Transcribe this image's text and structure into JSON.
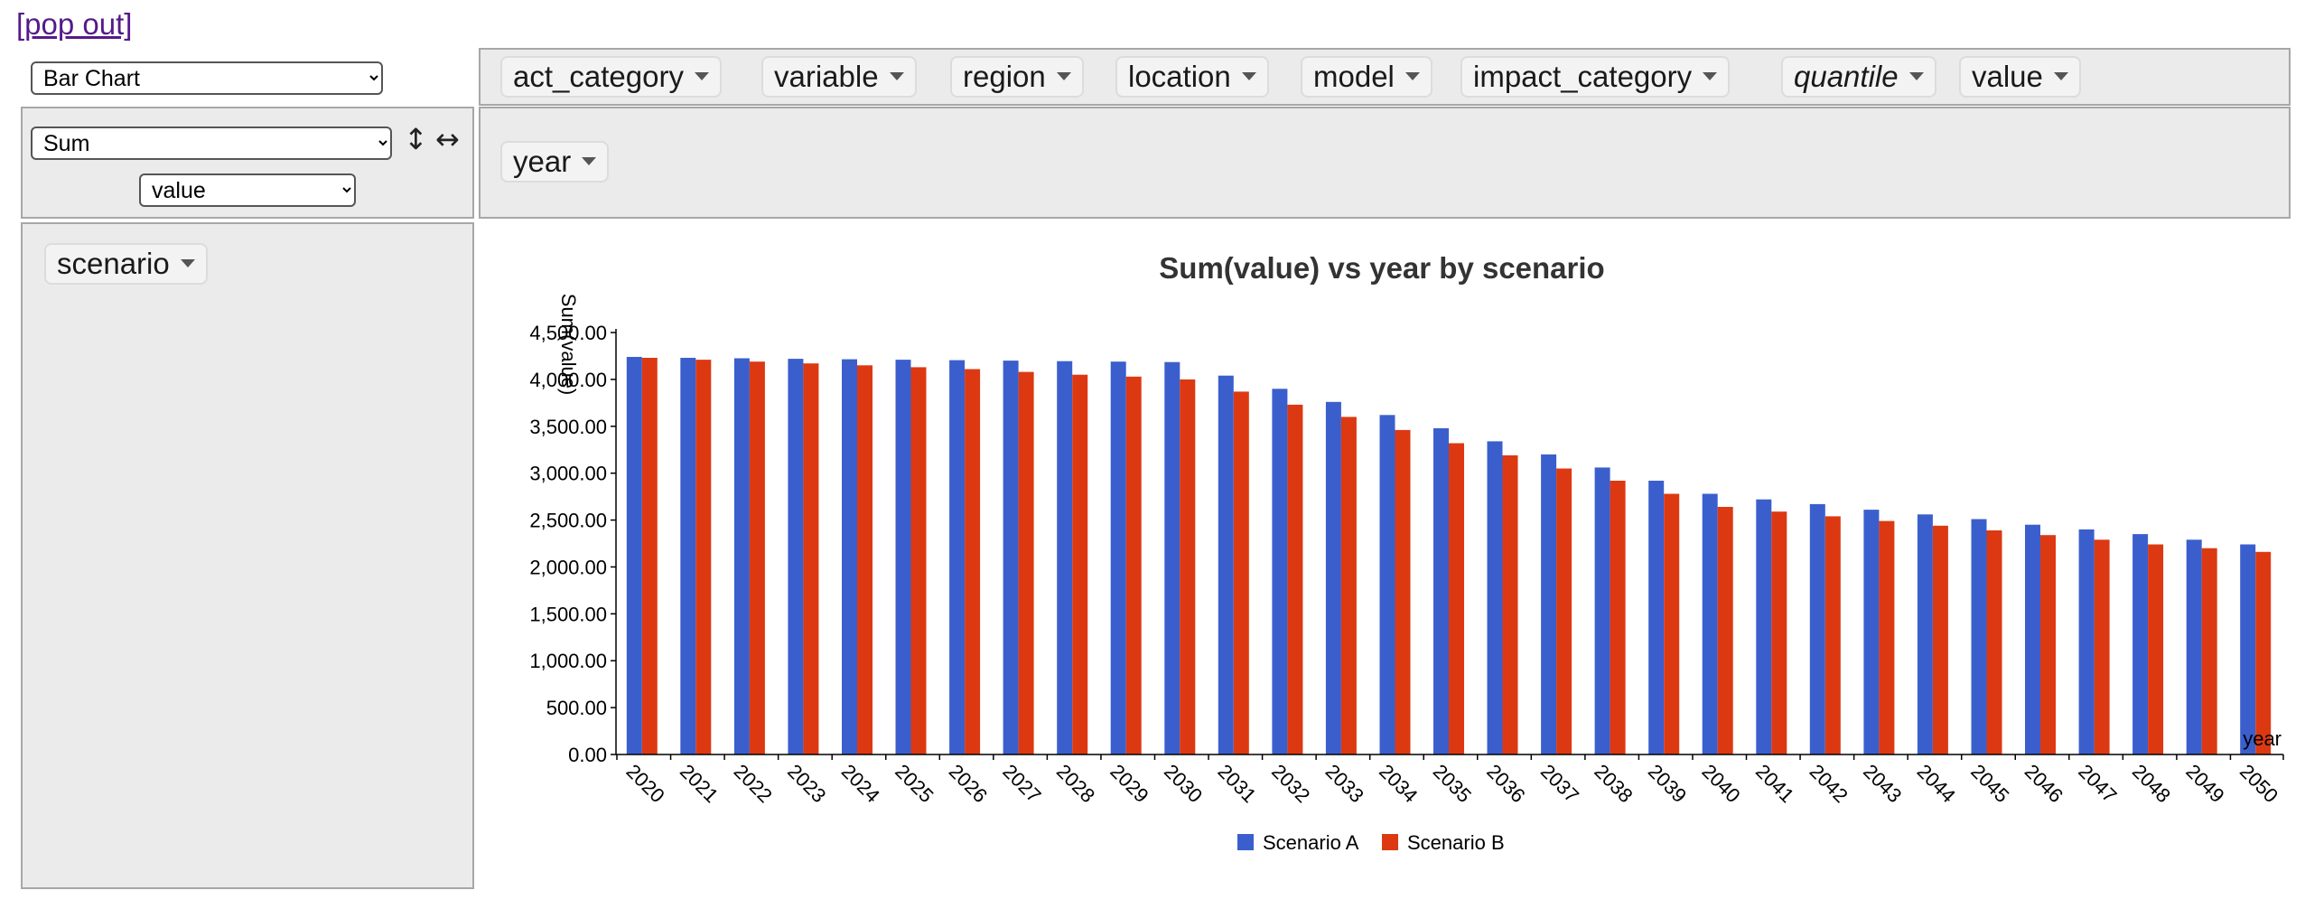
{
  "popout_label": "[pop out]",
  "renderer": {
    "selected": "Bar Chart"
  },
  "aggregator": {
    "selected": "Sum",
    "attribute": "value"
  },
  "axis_controls": {
    "vertical": "↕",
    "horizontal": "↔"
  },
  "unused_attrs": [
    {
      "label": "act_category",
      "italic": false
    },
    {
      "label": "variable",
      "italic": false
    },
    {
      "label": "region",
      "italic": false
    },
    {
      "label": "location",
      "italic": false
    },
    {
      "label": "model",
      "italic": false
    },
    {
      "label": "impact_category",
      "italic": false
    },
    {
      "label": "quantile",
      "italic": true
    },
    {
      "label": "value",
      "italic": false
    }
  ],
  "col_attrs": [
    {
      "label": "year"
    }
  ],
  "row_attrs": [
    {
      "label": "scenario"
    }
  ],
  "colors": {
    "series_a": "#3a5fcd",
    "series_b": "#dc3912"
  },
  "chart_data": {
    "type": "bar",
    "title": "Sum(value) vs year by scenario",
    "xlabel": "year",
    "ylabel": "Sum(value)",
    "ylim": [
      0,
      4500
    ],
    "yticks": [
      "0.00",
      "500.00",
      "1,000.00",
      "1,500.00",
      "2,000.00",
      "2,500.00",
      "3,000.00",
      "3,500.00",
      "4,000.00",
      "4,500.00"
    ],
    "categories": [
      "2020",
      "2021",
      "2022",
      "2023",
      "2024",
      "2025",
      "2026",
      "2027",
      "2028",
      "2029",
      "2030",
      "2031",
      "2032",
      "2033",
      "2034",
      "2035",
      "2036",
      "2037",
      "2038",
      "2039",
      "2040",
      "2041",
      "2042",
      "2043",
      "2044",
      "2045",
      "2046",
      "2047",
      "2048",
      "2049",
      "2050"
    ],
    "series": [
      {
        "name": "Scenario A",
        "values": [
          4240,
          4230,
          4225,
          4220,
          4215,
          4210,
          4205,
          4200,
          4195,
          4190,
          4185,
          4040,
          3900,
          3760,
          3620,
          3480,
          3340,
          3200,
          3060,
          2920,
          2780,
          2720,
          2670,
          2610,
          2560,
          2510,
          2450,
          2400,
          2350,
          2290,
          2240
        ]
      },
      {
        "name": "Scenario B",
        "values": [
          4230,
          4210,
          4190,
          4170,
          4150,
          4130,
          4110,
          4080,
          4050,
          4030,
          4000,
          3870,
          3730,
          3600,
          3460,
          3320,
          3190,
          3050,
          2920,
          2780,
          2640,
          2590,
          2540,
          2490,
          2440,
          2390,
          2340,
          2290,
          2240,
          2200,
          2160
        ]
      }
    ]
  }
}
